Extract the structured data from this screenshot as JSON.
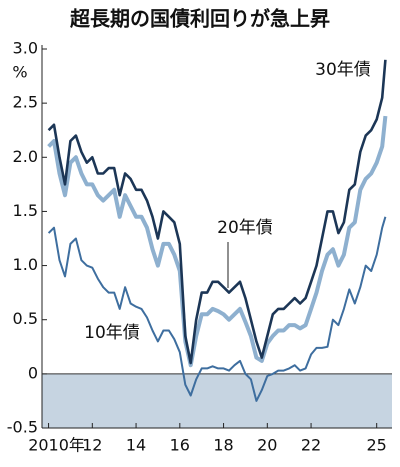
{
  "chart_data": {
    "type": "line",
    "title": "超長期の国債利回りが急上昇",
    "y_unit": "%",
    "x": [
      2010,
      2010.25,
      2010.5,
      2010.75,
      2011,
      2011.25,
      2011.5,
      2011.75,
      2012,
      2012.25,
      2012.5,
      2012.75,
      2013,
      2013.25,
      2013.5,
      2013.75,
      2014,
      2014.25,
      2014.5,
      2014.75,
      2015,
      2015.25,
      2015.5,
      2015.75,
      2016,
      2016.25,
      2016.5,
      2016.75,
      2017,
      2017.25,
      2017.5,
      2017.75,
      2018,
      2018.25,
      2018.5,
      2018.75,
      2019,
      2019.25,
      2019.5,
      2019.75,
      2020,
      2020.25,
      2020.5,
      2020.75,
      2021,
      2021.25,
      2021.5,
      2021.75,
      2022,
      2022.25,
      2022.5,
      2022.75,
      2023,
      2023.25,
      2023.5,
      2023.75,
      2024,
      2024.25,
      2024.5,
      2024.75,
      2025,
      2025.25,
      2025.4
    ],
    "series": [
      {
        "name": "30年債",
        "color": "#1c3656",
        "values": [
          2.25,
          2.3,
          2.0,
          1.75,
          2.15,
          2.2,
          2.05,
          1.95,
          2.0,
          1.85,
          1.85,
          1.9,
          1.9,
          1.65,
          1.85,
          1.8,
          1.7,
          1.7,
          1.6,
          1.45,
          1.25,
          1.5,
          1.45,
          1.4,
          1.2,
          0.35,
          0.1,
          0.5,
          0.75,
          0.75,
          0.85,
          0.85,
          0.8,
          0.75,
          0.8,
          0.85,
          0.7,
          0.5,
          0.3,
          0.15,
          0.35,
          0.55,
          0.6,
          0.6,
          0.65,
          0.7,
          0.65,
          0.7,
          0.85,
          1.0,
          1.25,
          1.5,
          1.5,
          1.3,
          1.4,
          1.7,
          1.75,
          2.05,
          2.2,
          2.25,
          2.35,
          2.55,
          2.9
        ]
      },
      {
        "name": "20年債",
        "color": "#8eb0cf",
        "values": [
          2.1,
          2.15,
          1.85,
          1.65,
          1.95,
          2.0,
          1.85,
          1.75,
          1.75,
          1.65,
          1.6,
          1.65,
          1.7,
          1.45,
          1.65,
          1.55,
          1.45,
          1.45,
          1.35,
          1.15,
          1.0,
          1.2,
          1.2,
          1.1,
          0.95,
          0.3,
          0.08,
          0.35,
          0.55,
          0.55,
          0.6,
          0.58,
          0.55,
          0.5,
          0.55,
          0.6,
          0.48,
          0.35,
          0.15,
          0.12,
          0.28,
          0.35,
          0.4,
          0.4,
          0.45,
          0.45,
          0.42,
          0.45,
          0.6,
          0.75,
          0.95,
          1.1,
          1.15,
          1.0,
          1.1,
          1.35,
          1.4,
          1.7,
          1.8,
          1.85,
          1.95,
          2.1,
          2.38
        ]
      },
      {
        "name": "10年債",
        "color": "#3e6e9f",
        "values": [
          1.3,
          1.35,
          1.05,
          0.9,
          1.2,
          1.25,
          1.05,
          1.0,
          0.98,
          0.88,
          0.8,
          0.75,
          0.75,
          0.6,
          0.8,
          0.65,
          0.62,
          0.6,
          0.52,
          0.4,
          0.3,
          0.4,
          0.4,
          0.32,
          0.2,
          -0.1,
          -0.2,
          -0.05,
          0.05,
          0.05,
          0.07,
          0.05,
          0.05,
          0.03,
          0.08,
          0.12,
          0.0,
          -0.05,
          -0.25,
          -0.15,
          -0.02,
          0.0,
          0.03,
          0.03,
          0.05,
          0.08,
          0.03,
          0.05,
          0.18,
          0.24,
          0.24,
          0.25,
          0.5,
          0.45,
          0.6,
          0.78,
          0.65,
          0.8,
          1.0,
          0.95,
          1.1,
          1.35,
          1.45
        ]
      }
    ],
    "xlim": [
      2009.7,
      2025.7
    ],
    "xticks": [
      {
        "value": 2010,
        "label": "2010年"
      },
      {
        "value": 2012,
        "label": "12"
      },
      {
        "value": 2014,
        "label": "14"
      },
      {
        "value": 2016,
        "label": "16"
      },
      {
        "value": 2018,
        "label": "18"
      },
      {
        "value": 2020,
        "label": "20"
      },
      {
        "value": 2022,
        "label": "22"
      },
      {
        "value": 2025,
        "label": "25"
      }
    ],
    "ylim": [
      -0.5,
      3
    ],
    "yticks": [
      {
        "value": 3,
        "label": "3.0"
      },
      2.5,
      {
        "value": 2,
        "label": "2.0"
      },
      1.5,
      {
        "value": 1,
        "label": "1.0"
      },
      0.5,
      0,
      -0.5
    ],
    "negative_shade": "#c6d4e1"
  }
}
